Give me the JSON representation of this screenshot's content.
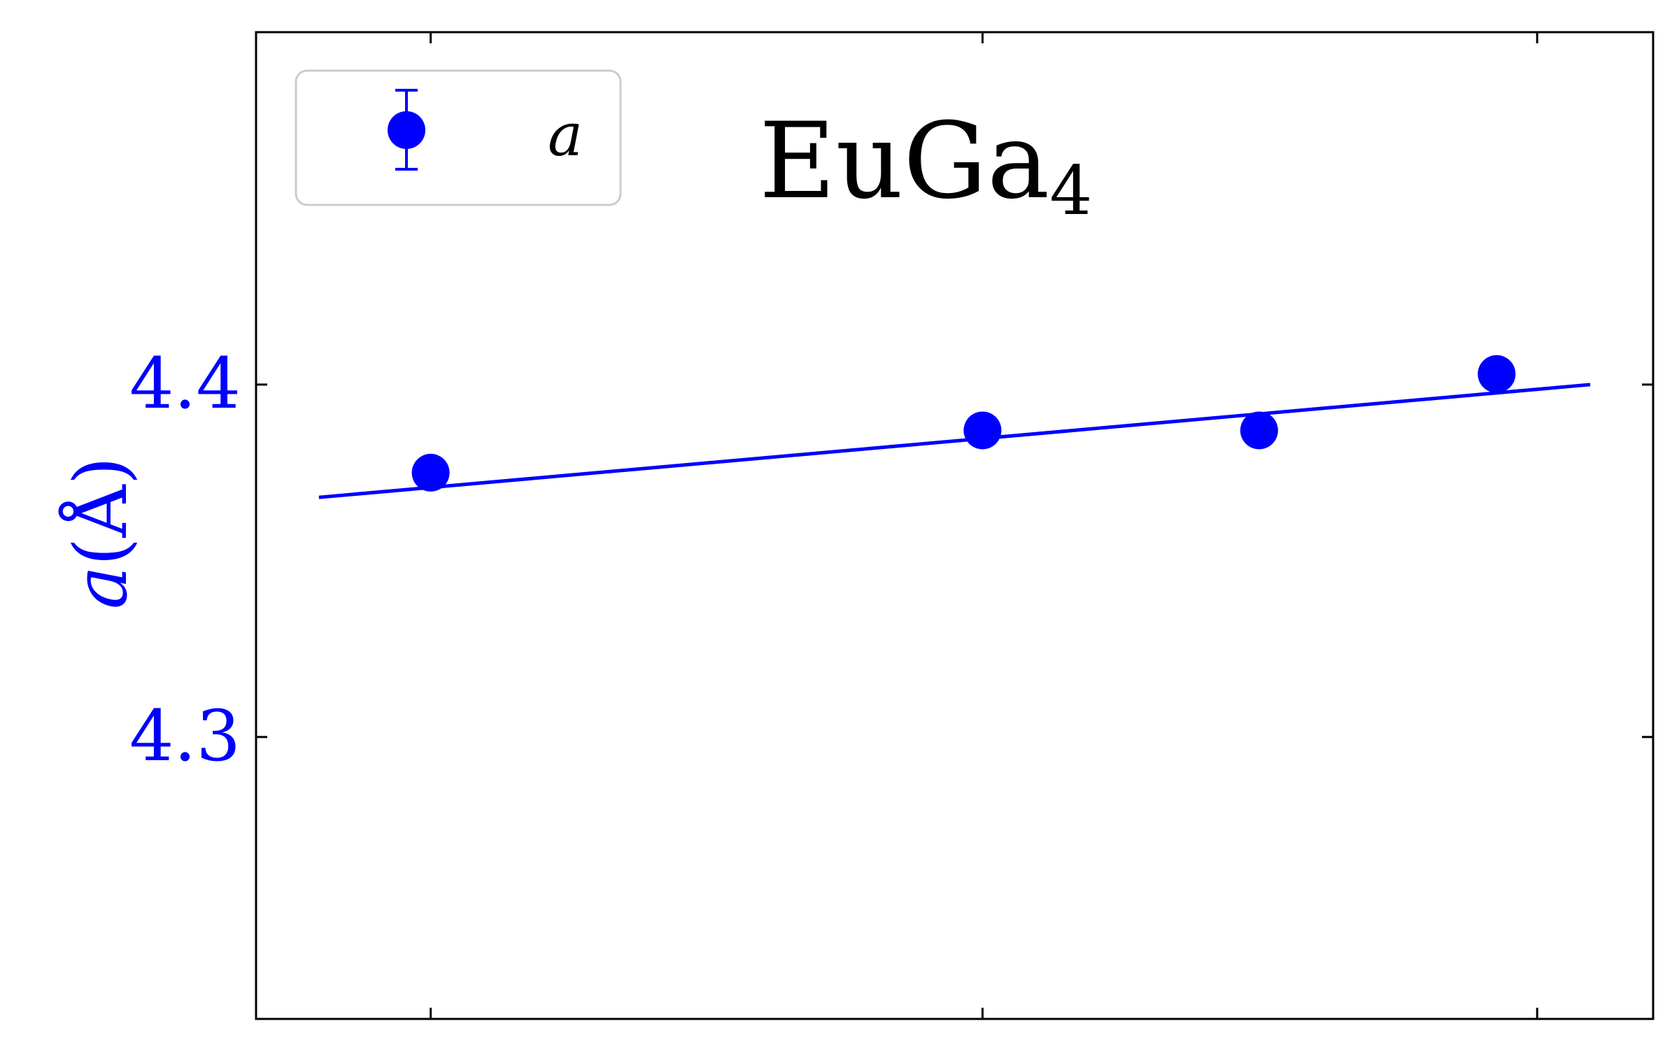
{
  "chart_data": {
    "type": "scatter",
    "title_main": "EuGa",
    "title_sub": "4",
    "ylabel_var": "a",
    "ylabel_unit": "(Å)",
    "ylim": [
      4.22,
      4.5
    ],
    "yticks": [
      4.3,
      4.4
    ],
    "ytick_labels": [
      "4.3",
      "4.4"
    ],
    "xlim": [
      0,
      1
    ],
    "xticks": [
      0.125,
      0.52,
      0.917
    ],
    "series": [
      {
        "name": "a",
        "color": "#0000ff",
        "marker": "circle",
        "error_bars": true,
        "points": [
          {
            "x": 0.125,
            "y": 4.375
          },
          {
            "x": 0.52,
            "y": 4.387
          },
          {
            "x": 0.718,
            "y": 4.387
          },
          {
            "x": 0.888,
            "y": 4.403
          }
        ]
      }
    ],
    "fit_line": {
      "color": "#0000ff",
      "x": [
        0.045,
        0.955
      ],
      "y": [
        4.368,
        4.4
      ]
    },
    "legend": {
      "position": "top-left",
      "label": "a"
    },
    "colors": {
      "series": "#0000ff",
      "axis": "#000000",
      "legend_border": "#cccccc"
    }
  }
}
